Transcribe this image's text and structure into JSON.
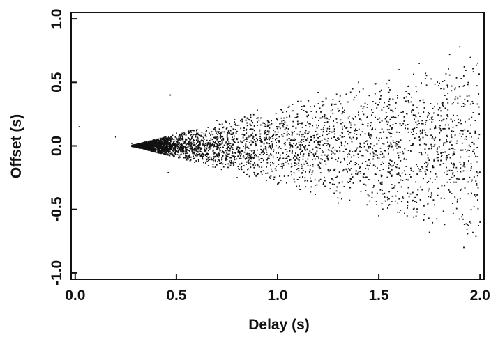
{
  "chart_data": {
    "type": "scatter",
    "xlabel": "Delay (s)",
    "ylabel": "Offset (s)",
    "xlim": [
      -0.02,
      2.02
    ],
    "ylim": [
      -1.05,
      1.05
    ],
    "x_ticks": [
      0.0,
      0.5,
      1.0,
      1.5,
      2.0
    ],
    "x_tick_labels": [
      "0.0",
      "0.5",
      "1.0",
      "1.5",
      "2.0"
    ],
    "y_ticks": [
      -1.0,
      -0.5,
      0.0,
      0.5,
      1.0
    ],
    "y_tick_labels": [
      "-1.0",
      "-0.5",
      "0.0",
      "0.5",
      "1.0"
    ],
    "grid": false,
    "marker_color": "#111111",
    "series": [
      {
        "description_points": [
          [
            0.28,
            0.02
          ],
          [
            0.3,
            0.01
          ],
          [
            0.32,
            0.0
          ],
          [
            0.35,
            -0.02
          ],
          [
            0.38,
            0.04
          ],
          [
            0.42,
            0.06
          ],
          [
            0.45,
            -0.07
          ],
          [
            0.5,
            0.1
          ],
          [
            0.55,
            -0.08
          ],
          [
            0.6,
            0.12
          ],
          [
            0.7,
            0.2
          ],
          [
            0.8,
            -0.25
          ],
          [
            0.9,
            0.28
          ],
          [
            1.0,
            -0.3
          ],
          [
            1.1,
            0.35
          ],
          [
            1.2,
            0.42
          ],
          [
            1.3,
            -0.45
          ],
          [
            1.4,
            0.5
          ],
          [
            1.5,
            -0.55
          ],
          [
            1.6,
            0.6
          ],
          [
            1.7,
            0.65
          ],
          [
            1.75,
            -0.68
          ],
          [
            1.85,
            0.72
          ],
          [
            1.9,
            0.78
          ],
          [
            1.92,
            -0.8
          ],
          [
            0.47,
            0.4
          ],
          [
            0.2,
            0.07
          ],
          [
            0.02,
            0.15
          ],
          [
            0.46,
            -0.21
          ],
          [
            1.95,
            -0.6
          ],
          [
            2.0,
            -0.6
          ],
          [
            1.55,
            0.35
          ],
          [
            1.65,
            -0.4
          ],
          [
            1.45,
            0.1
          ],
          [
            1.8,
            0.2
          ]
        ]
      }
    ]
  }
}
